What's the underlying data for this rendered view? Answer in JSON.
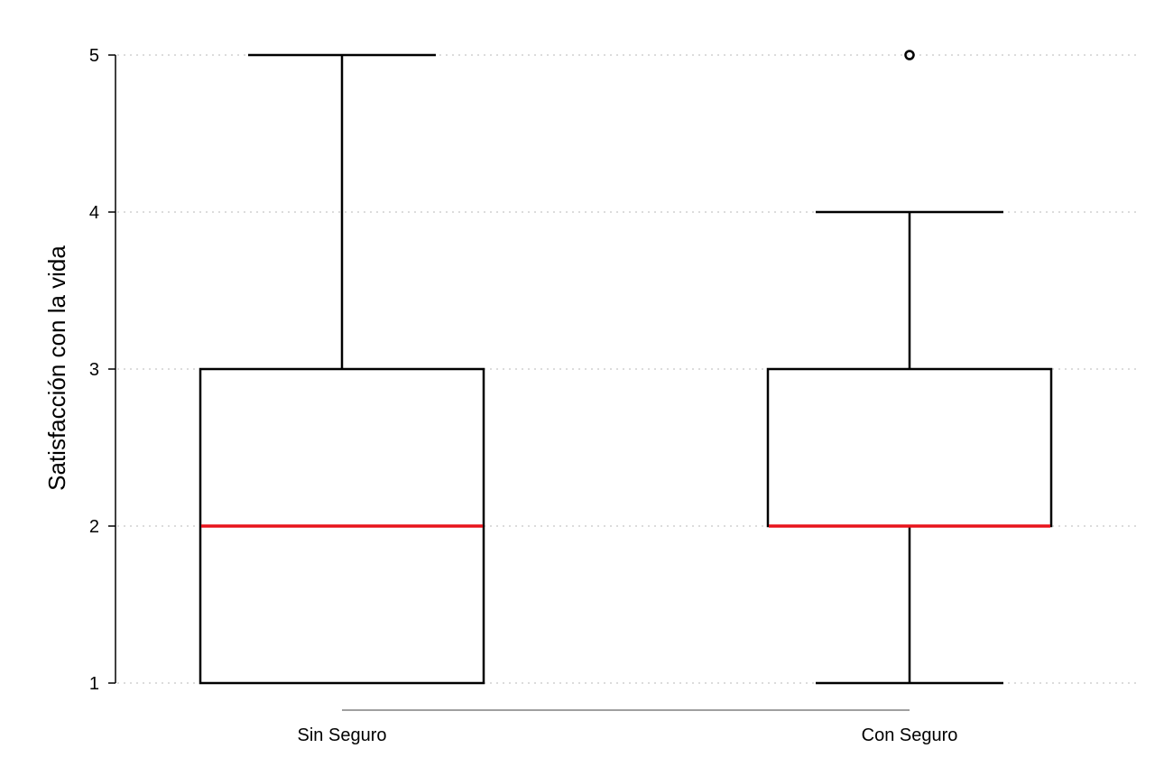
{
  "chart_data": {
    "type": "box",
    "title": "",
    "xlabel": "",
    "ylabel": "Satisfacción con la vida",
    "ylim": [
      1,
      5
    ],
    "yticks": [
      1,
      2,
      3,
      4,
      5
    ],
    "grid": "horizontal-dotted",
    "categories": [
      "Sin Seguro",
      "Con Seguro"
    ],
    "boxes": [
      {
        "category": "Sin Seguro",
        "whisker_low": 1,
        "q1": 1,
        "median": 2,
        "q3": 3,
        "whisker_high": 5,
        "outliers": []
      },
      {
        "category": "Con Seguro",
        "whisker_low": 1,
        "q1": 2,
        "median": 2,
        "q3": 3,
        "whisker_high": 4,
        "outliers": [
          5
        ]
      }
    ],
    "colors": {
      "box_stroke": "#000000",
      "median": "#e8141c",
      "grid": "#c8c8c8",
      "axis": "#000000",
      "x_baseline": "#a0a0a0"
    }
  }
}
